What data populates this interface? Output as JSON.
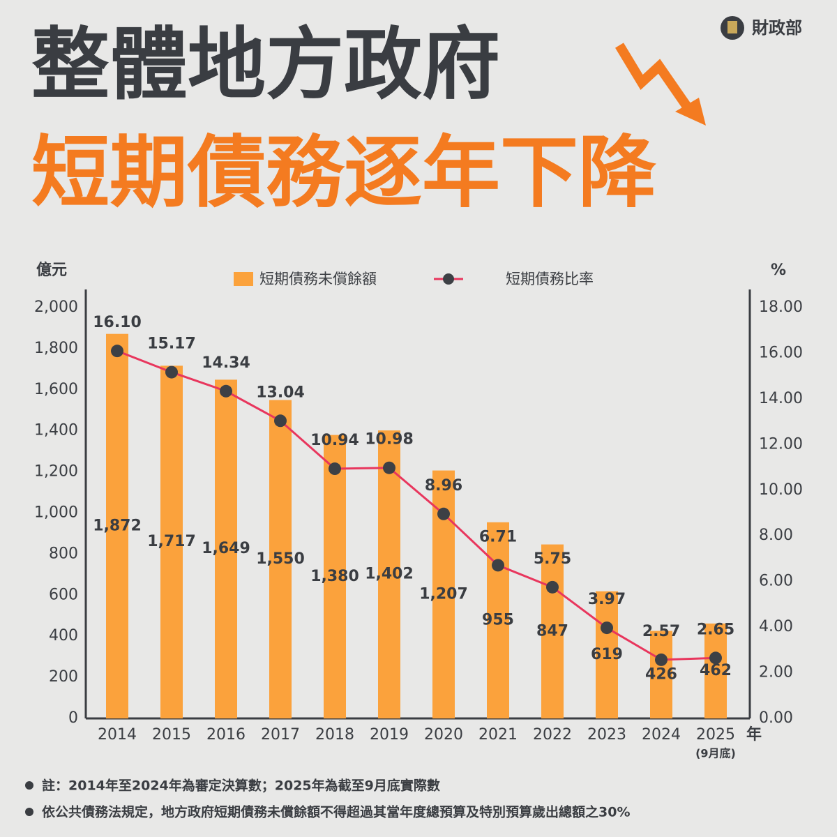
{
  "logo": "財政部",
  "title_lines": [
    "整體地方政府",
    "短期債務逐年下降"
  ],
  "notes": [
    "註：2014年至2024年為審定決算數；2025年為截至9月底實際數",
    "依公共債務法規定，地方政府短期債務未償餘額不得超過其當年度總預算及特別預算歲出總額之30%"
  ],
  "chart_data": {
    "type": "bar",
    "y_label": "億元",
    "y2_label": "%",
    "x_label": "年",
    "category_note": "(9月底)",
    "categories": [
      "2014",
      "2015",
      "2016",
      "2017",
      "2018",
      "2019",
      "2020",
      "2021",
      "2022",
      "2023",
      "2024",
      "2025"
    ],
    "series": [
      {
        "name": "短期債務未償餘額",
        "type": "bar",
        "color": "#fba23c",
        "values": [
          1872,
          1717,
          1649,
          1550,
          1380,
          1402,
          1207,
          955,
          847,
          619,
          426,
          462
        ],
        "value_labels": [
          "1,872",
          "1,717",
          "1,649",
          "1,550",
          "1,380",
          "1,402",
          "1,207",
          "955",
          "847",
          "619",
          "426",
          "462"
        ]
      },
      {
        "name": "短期債務比率",
        "type": "line",
        "axis": "y2",
        "color": "#e8365d",
        "values": [
          16.1,
          15.17,
          14.34,
          13.04,
          10.94,
          10.98,
          8.96,
          6.71,
          5.75,
          3.97,
          2.57,
          2.65
        ],
        "value_labels": [
          "16.10",
          "15.17",
          "14.34",
          "13.04",
          "10.94",
          "10.98",
          "8.96",
          "6.71",
          "5.75",
          "3.97",
          "2.57",
          "2.65"
        ]
      }
    ],
    "ylim": [
      0,
      2000
    ],
    "yticks": [
      0,
      200,
      400,
      600,
      800,
      {
        "value": 1000,
        "label": "1,000"
      },
      {
        "value": 1200,
        "label": "1,200"
      },
      {
        "value": 1400,
        "label": "1,400"
      },
      {
        "value": 1600,
        "label": "1,600"
      },
      {
        "value": 1800,
        "label": "1,800"
      },
      {
        "value": 2000,
        "label": "2,000"
      }
    ],
    "y2lim": [
      0,
      18
    ],
    "y2ticks": [
      {
        "value": 0,
        "label": "0.00"
      },
      {
        "value": 2,
        "label": "2.00"
      },
      {
        "value": 4,
        "label": "4.00"
      },
      {
        "value": 6,
        "label": "6.00"
      },
      {
        "value": 8,
        "label": "8.00"
      },
      {
        "value": 10,
        "label": "10.00"
      },
      {
        "value": 12,
        "label": "12.00"
      },
      {
        "value": 14,
        "label": "14.00"
      },
      {
        "value": 16,
        "label": "16.00"
      },
      {
        "value": 18,
        "label": "18.00"
      }
    ]
  }
}
